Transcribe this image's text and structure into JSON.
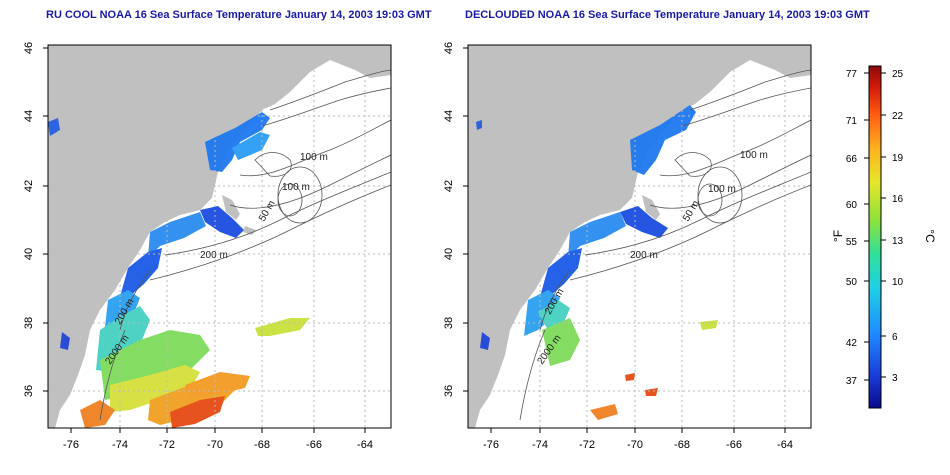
{
  "panels": [
    {
      "title": "RU COOL NOAA 16 Sea Surface Temperature January 14, 2003 19:03 GMT",
      "contours": {
        "c200": "200 m",
        "c100a": "100 m",
        "c100b": "100 m",
        "c50": "50 m",
        "c2000": "2000 m",
        "cslope": "200 m"
      }
    },
    {
      "title": "DECLOUDED NOAA 16 Sea Surface Temperature January 14, 2003 19:03 GMT",
      "contours": {
        "c200": "200 m",
        "c100a": "100 m",
        "c100b": "100 m",
        "c50": "50 m",
        "c2000": "2000 m",
        "cslope": "200 m"
      }
    }
  ],
  "axes": {
    "x_ticks": [
      "-76",
      "-74",
      "-72",
      "-70",
      "-68",
      "-66",
      "-64"
    ],
    "y_ticks": [
      "36",
      "38",
      "40",
      "42",
      "44",
      "46"
    ]
  },
  "colorbar": {
    "fahrenheit_label": "°F",
    "celsius_label": "°C",
    "fahrenheit_ticks": [
      "77",
      "71",
      "66",
      "60",
      "55",
      "50",
      "42",
      "37"
    ],
    "celsius_ticks": [
      "25",
      "22",
      "19",
      "16",
      "13",
      "10",
      "6",
      "3"
    ],
    "colors": [
      "#0a0a8c",
      "#1a3fdc",
      "#1e8cff",
      "#20d0e6",
      "#30e09a",
      "#8ee23a",
      "#e6e62a",
      "#ffb020",
      "#ff5a10",
      "#d21a0a",
      "#8c0a0a"
    ]
  },
  "colors": {
    "land": "#c0c0c0",
    "ocean": "#ffffff",
    "contour": "#555555",
    "grid": "#bbbbbb",
    "title": "#1a1aa8"
  }
}
